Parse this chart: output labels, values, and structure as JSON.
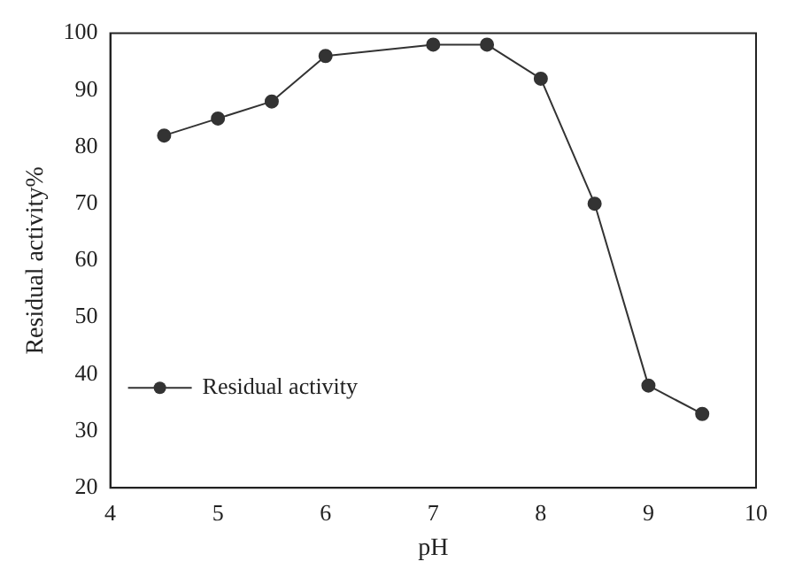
{
  "chart_data": {
    "type": "line",
    "xlabel": "pH",
    "ylabel": "Residual activity%",
    "x": [
      4.5,
      5,
      5.5,
      6,
      7,
      7.5,
      8,
      8.5,
      9,
      9.5
    ],
    "series": [
      {
        "name": "Residual activity",
        "color": "#333333",
        "values": [
          82,
          85,
          88,
          96,
          98,
          98,
          92,
          70,
          38,
          33
        ]
      }
    ],
    "xlim": [
      4,
      10
    ],
    "xticks": [
      4,
      5,
      6,
      7,
      8,
      9,
      10
    ],
    "ylim": [
      20,
      100
    ],
    "yticks": [
      20,
      30,
      40,
      50,
      60,
      70,
      80,
      90,
      100
    ],
    "grid": false,
    "legend": "left",
    "marker": "circle",
    "line_style": "solid"
  }
}
